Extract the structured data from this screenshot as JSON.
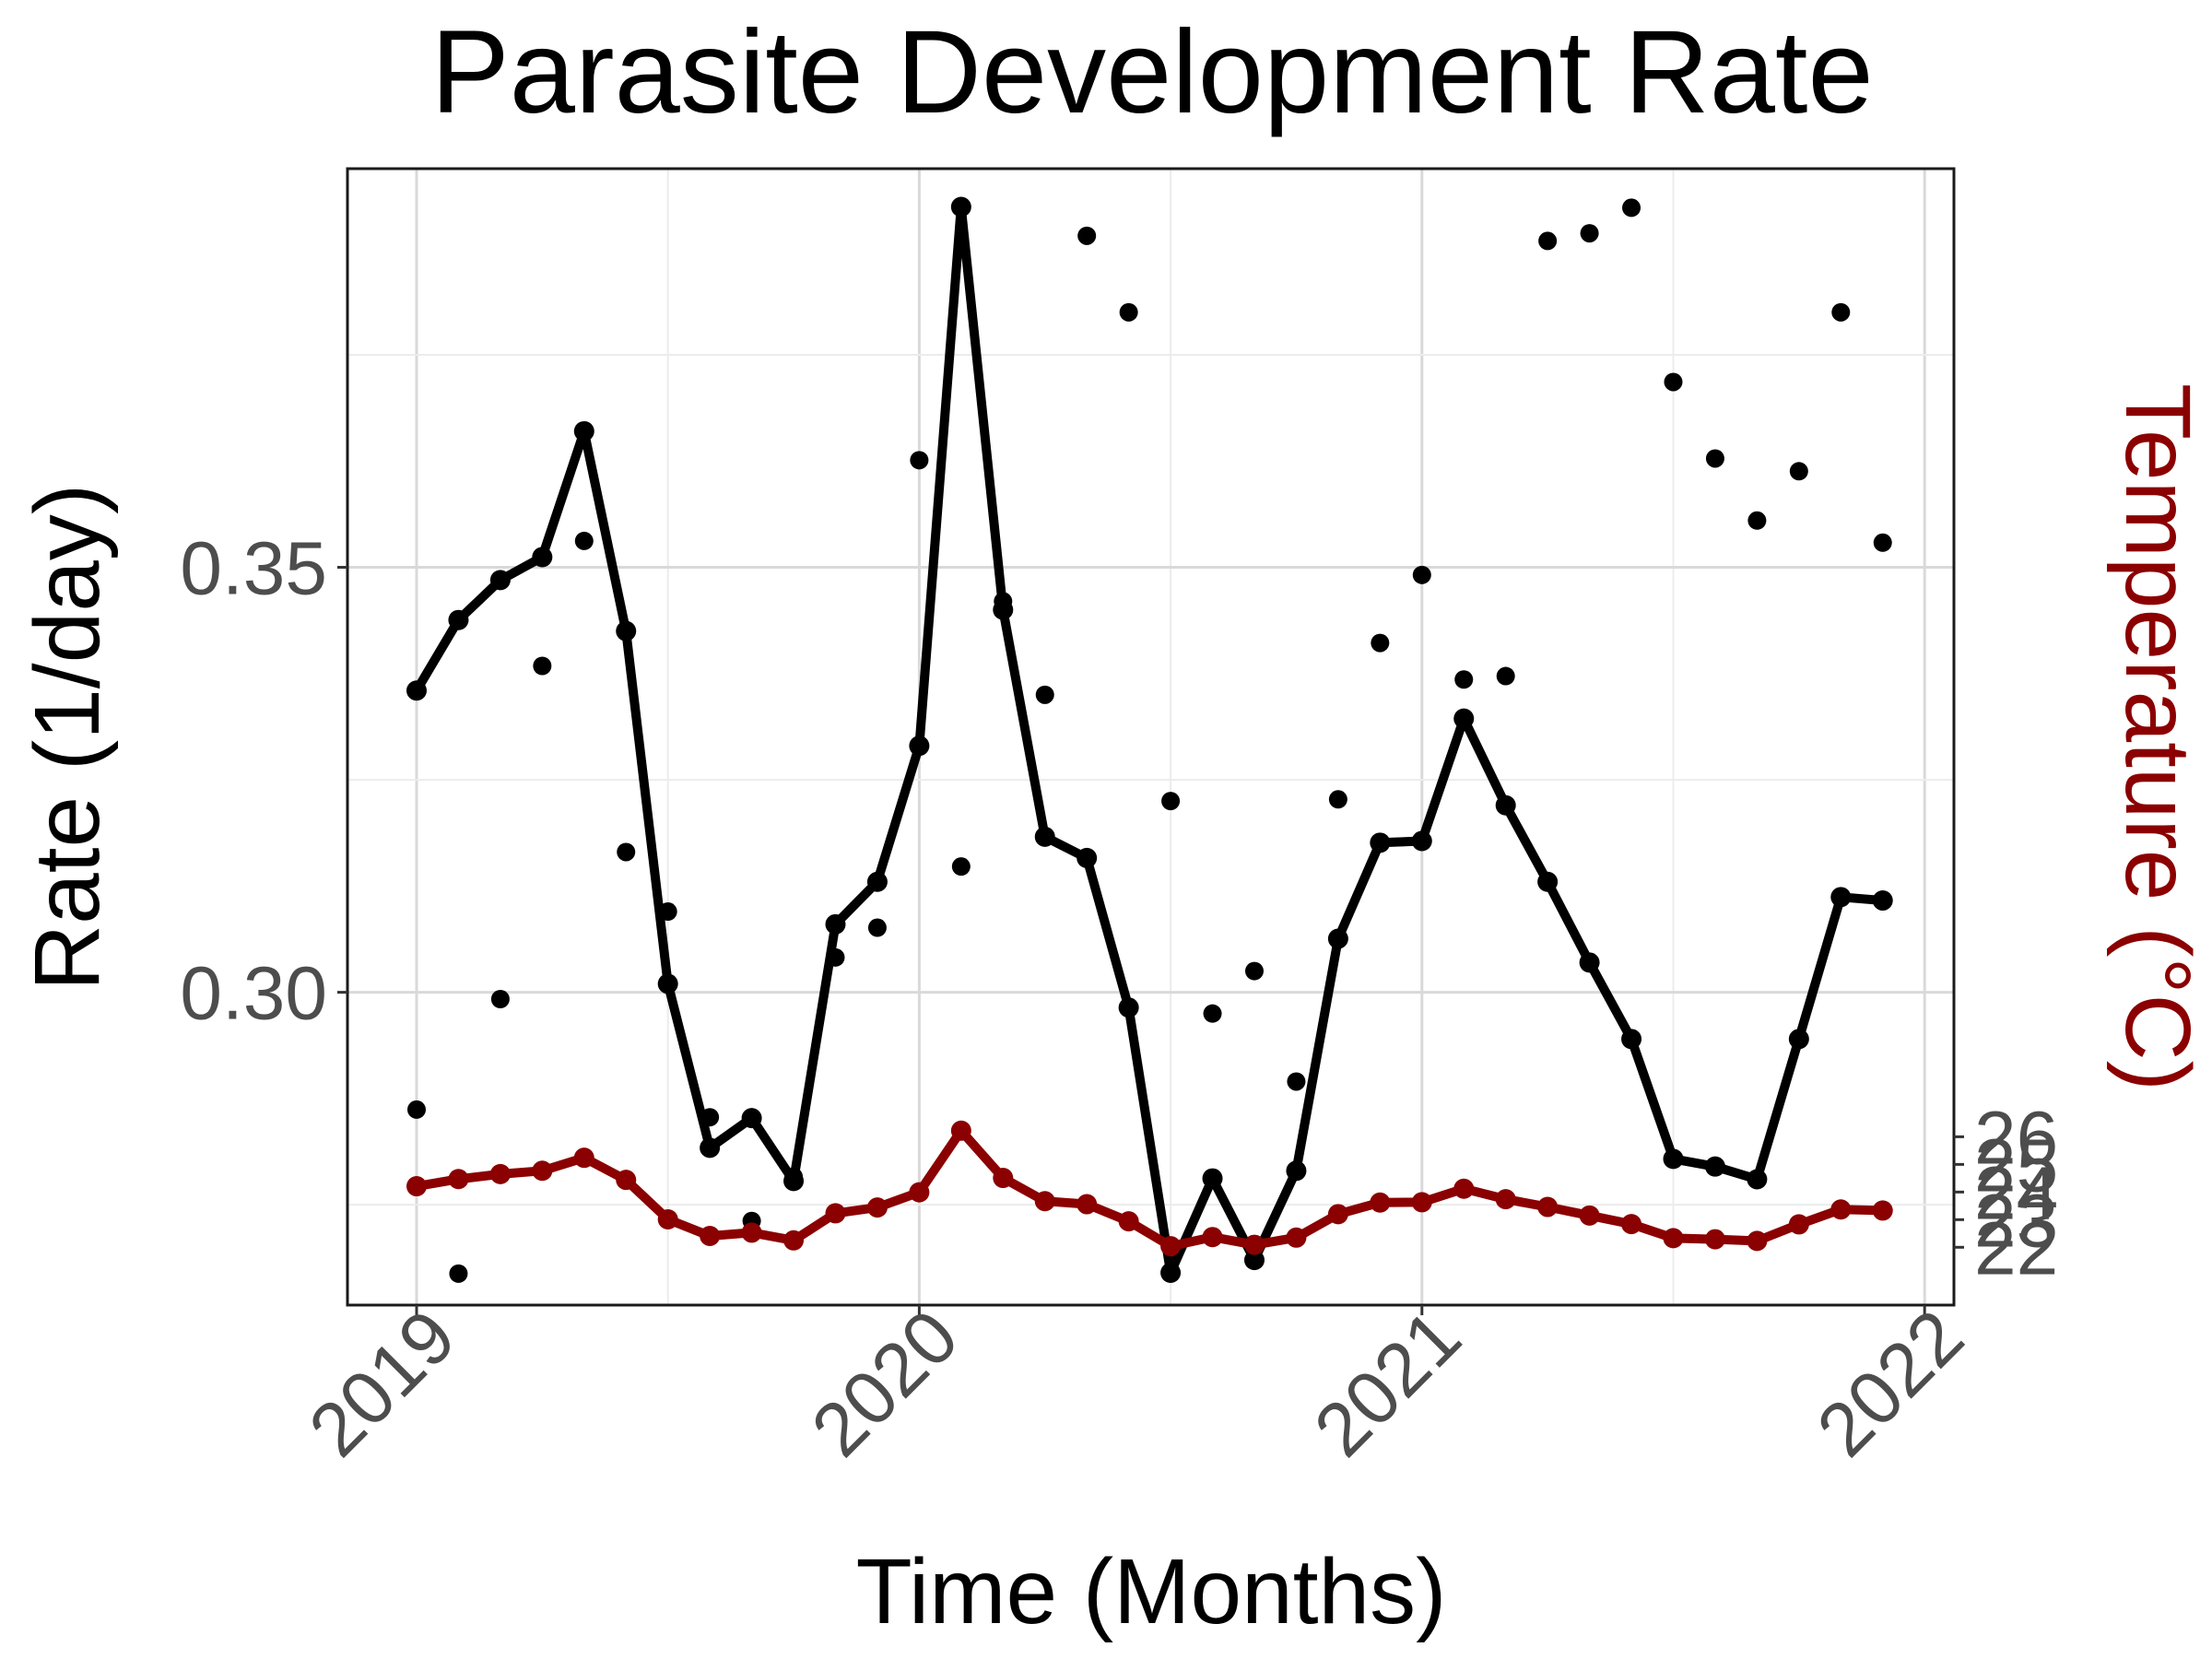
{
  "chart_data": {
    "type": "line",
    "title": "Parasite Development Rate",
    "xlabel": "Time (Months)",
    "ylabel": "Rate (1/day)",
    "y2label": "Temperature (°C)",
    "x_ticks": [
      {
        "value": 0,
        "label": "2019"
      },
      {
        "value": 12,
        "label": "2020"
      },
      {
        "value": 24,
        "label": "2021"
      },
      {
        "value": 36,
        "label": "2022"
      }
    ],
    "xlim": [
      -1.65,
      36.7
    ],
    "ylim": [
      0.2632,
      0.3969
    ],
    "y_ticks": [
      {
        "value": 0.3,
        "label": "0.30"
      },
      {
        "value": 0.35,
        "label": "0.35"
      }
    ],
    "y_minor": [
      0.275,
      0.325,
      0.375
    ],
    "y2_ticks": [
      {
        "value": 22,
        "label": "22"
      },
      {
        "value": 23,
        "label": "23"
      },
      {
        "value": 24,
        "label": "24"
      },
      {
        "value": 25,
        "label": "25"
      },
      {
        "value": 26,
        "label": "26"
      }
    ],
    "y2_to_rate": {
      "intercept": 0.1985,
      "slope": 0.00325
    },
    "colors": {
      "rate": "#000000",
      "temperature": "#8b0000",
      "points": "#000000"
    },
    "series": [
      {
        "name": "Rate",
        "axis": "left",
        "kind": "line",
        "x": [
          0,
          1,
          2,
          3,
          4,
          5,
          6,
          7,
          8,
          9,
          10,
          11,
          12,
          13,
          14,
          15,
          16,
          17,
          18,
          19,
          20,
          21,
          22,
          23,
          24,
          25,
          26,
          27,
          28,
          29,
          30,
          31,
          32,
          33,
          34,
          35
        ],
        "values": [
          0.3355,
          0.3438,
          0.3485,
          0.3512,
          0.366,
          0.3425,
          0.301,
          0.2817,
          0.2852,
          0.2778,
          0.308,
          0.313,
          0.329,
          0.3924,
          0.345,
          0.3183,
          0.3158,
          0.2982,
          0.267,
          0.2781,
          0.2685,
          0.279,
          0.3063,
          0.3176,
          0.3178,
          0.3322,
          0.322,
          0.313,
          0.3035,
          0.2945,
          0.2804,
          0.2795,
          0.278,
          0.2945,
          0.3112,
          0.3108
        ]
      },
      {
        "name": "Temperature",
        "axis": "right",
        "kind": "line",
        "x": [
          0,
          1,
          2,
          3,
          4,
          5,
          6,
          7,
          8,
          9,
          10,
          11,
          12,
          13,
          14,
          15,
          16,
          17,
          18,
          19,
          20,
          21,
          22,
          23,
          24,
          25,
          26,
          27,
          28,
          29,
          30,
          31,
          32,
          33,
          34,
          35
        ],
        "values": [
          24.21,
          24.47,
          24.65,
          24.77,
          25.24,
          24.44,
          23.01,
          22.41,
          22.53,
          22.25,
          23.23,
          23.44,
          23.99,
          26.22,
          24.51,
          23.67,
          23.56,
          22.94,
          22.04,
          22.37,
          22.09,
          22.35,
          23.2,
          23.62,
          23.63,
          24.12,
          23.74,
          23.46,
          23.15,
          22.84,
          22.33,
          22.29,
          22.23,
          22.83,
          23.37,
          23.33
        ]
      },
      {
        "name": "Observed rate",
        "axis": "left",
        "kind": "scatter",
        "x": [
          0,
          1,
          2,
          3,
          4,
          5,
          6,
          7,
          8,
          9,
          10,
          11,
          12,
          13,
          14,
          15,
          16,
          17,
          18,
          19,
          20,
          21,
          22,
          23,
          24,
          25,
          26,
          27,
          28,
          29,
          30,
          31,
          32,
          33,
          34,
          35
        ],
        "values": [
          0.2862,
          0.2669,
          0.2992,
          0.3384,
          0.3531,
          0.3165,
          0.3095,
          0.2853,
          0.2731,
          0.2783,
          0.3041,
          0.3076,
          0.3626,
          0.3148,
          0.346,
          0.335,
          0.389,
          0.38,
          0.3225,
          0.2975,
          0.3025,
          0.2895,
          0.3227,
          0.3411,
          0.3491,
          0.3368,
          0.3372,
          0.3884,
          0.3893,
          0.3923,
          0.3718,
          0.3628,
          0.3555,
          0.3613,
          0.38,
          0.3529
        ]
      }
    ]
  }
}
